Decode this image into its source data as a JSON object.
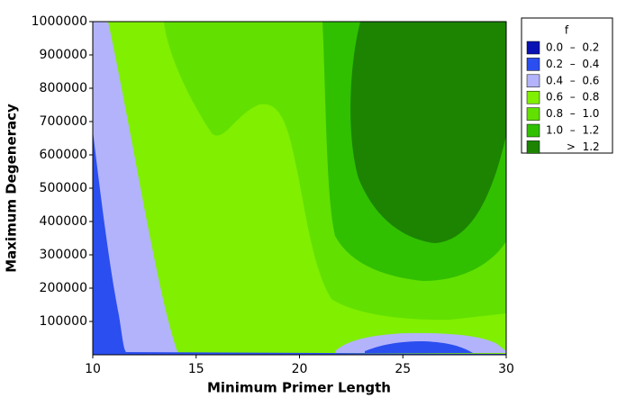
{
  "chart_data": {
    "type": "contour",
    "x_label": "Minimum Primer Length",
    "y_label": "Maximum Degeneracy",
    "xlim": [
      10,
      30
    ],
    "xticks": [
      10,
      15,
      20,
      25,
      30
    ],
    "ylim": [
      0,
      1000000
    ],
    "yticks": [
      100000,
      200000,
      300000,
      400000,
      500000,
      600000,
      700000,
      800000,
      900000,
      1000000
    ],
    "legend_title": "f",
    "levels": [
      {
        "min": 0.0,
        "max": 0.2,
        "label": "0.0  –  0.2",
        "color": "#0a12b4"
      },
      {
        "min": 0.2,
        "max": 0.4,
        "label": "0.2  –  0.4",
        "color": "#2b4ef0"
      },
      {
        "min": 0.4,
        "max": 0.6,
        "label": "0.4  –  0.6",
        "color": "#b3b3fb"
      },
      {
        "min": 0.6,
        "max": 0.8,
        "label": "0.6  –  0.8",
        "color": "#80ef00"
      },
      {
        "min": 0.8,
        "max": 1.0,
        "label": "0.8  –  1.0",
        "color": "#62e000"
      },
      {
        "min": 1.0,
        "max": 1.2,
        "label": "1.0  –  1.2",
        "color": "#30c000"
      },
      {
        "min": 1.2,
        "label": "      >  1.2",
        "color": "#1c8400"
      }
    ]
  }
}
